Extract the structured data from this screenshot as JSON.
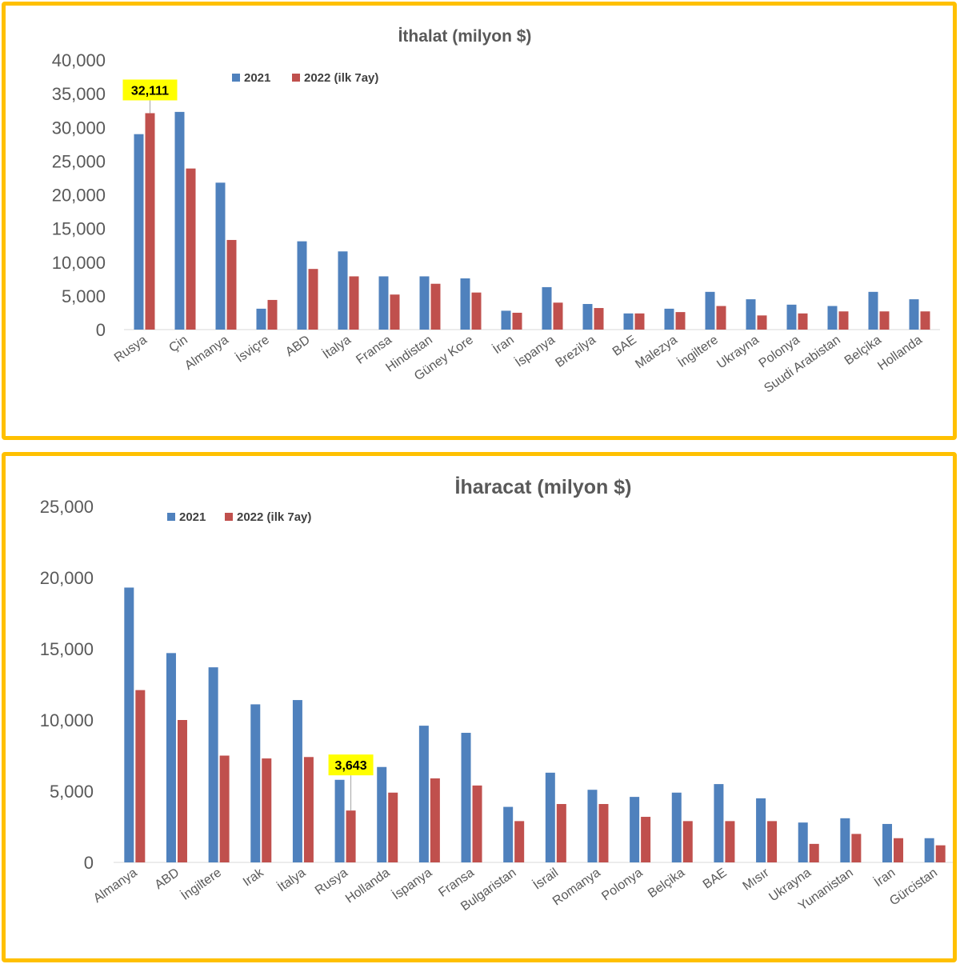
{
  "colors": {
    "series_2021": "#4F81BD",
    "series_2022": "#C0504D",
    "frame": "#FFC000",
    "callout": "#FFFF00"
  },
  "chart_data": [
    {
      "type": "bar",
      "title": "İthalat (milyon $)",
      "xlabel": "",
      "ylabel": "",
      "ylim": [
        0,
        40000
      ],
      "yticks": [
        "0",
        "5,000",
        "10,000",
        "15,000",
        "20,000",
        "25,000",
        "30,000",
        "35,000",
        "40,000"
      ],
      "grid": false,
      "legend_position": "top-left",
      "categories": [
        "Rusya",
        "Çin",
        "Almanya",
        "İsviçre",
        "ABD",
        "İtalya",
        "Fransa",
        "Hindistan",
        "Güney Kore",
        "İran",
        "İspanya",
        "Brezilya",
        "BAE",
        "Malezya",
        "İngiltere",
        "Ukrayna",
        "Polonya",
        "Suudi Arabistan",
        "Belçika",
        "Hollanda"
      ],
      "series": [
        {
          "name": "2021",
          "values": [
            29000,
            32300,
            21800,
            3100,
            13100,
            11600,
            7900,
            7900,
            7600,
            2800,
            6300,
            3800,
            2400,
            3100,
            5600,
            4500,
            3700,
            3500,
            5600,
            4500
          ]
        },
        {
          "name": "2022 (ilk 7ay)",
          "values": [
            32111,
            23900,
            13300,
            4400,
            9000,
            7900,
            5200,
            6800,
            5500,
            2500,
            4000,
            3200,
            2400,
            2600,
            3500,
            2100,
            2400,
            2700,
            2700,
            2700
          ]
        }
      ],
      "annotation": {
        "label": "32,111",
        "series": 1,
        "category": 0
      }
    },
    {
      "type": "bar",
      "title": "İharacat (milyon $)",
      "xlabel": "",
      "ylabel": "",
      "ylim": [
        0,
        25000
      ],
      "yticks": [
        "0",
        "5,000",
        "10,000",
        "15,000",
        "20,000",
        "25,000"
      ],
      "grid": false,
      "legend_position": "top-left",
      "categories": [
        "Almanya",
        "ABD",
        "İngiltere",
        "Irak",
        "İtalya",
        "Rusya",
        "Hollanda",
        "İspanya",
        "Fransa",
        "Bulgaristan",
        "İsrail",
        "Romanya",
        "Polonya",
        "Belçika",
        "BAE",
        "Mısır",
        "Ukrayna",
        "Yunanistan",
        "İran",
        "Gürcistan"
      ],
      "series": [
        {
          "name": "2021",
          "values": [
            19300,
            14700,
            13700,
            11100,
            11400,
            5800,
            6700,
            9600,
            9100,
            3900,
            6300,
            5100,
            4600,
            4900,
            5500,
            4500,
            2800,
            3100,
            2700,
            1700
          ]
        },
        {
          "name": "2022 (ilk 7ay)",
          "values": [
            12100,
            10000,
            7500,
            7300,
            7400,
            3643,
            4900,
            5900,
            5400,
            2900,
            4100,
            4100,
            3200,
            2900,
            2900,
            2900,
            1300,
            2000,
            1700,
            1200
          ]
        }
      ],
      "annotation": {
        "label": "3,643",
        "series": 1,
        "category": 5
      }
    }
  ]
}
